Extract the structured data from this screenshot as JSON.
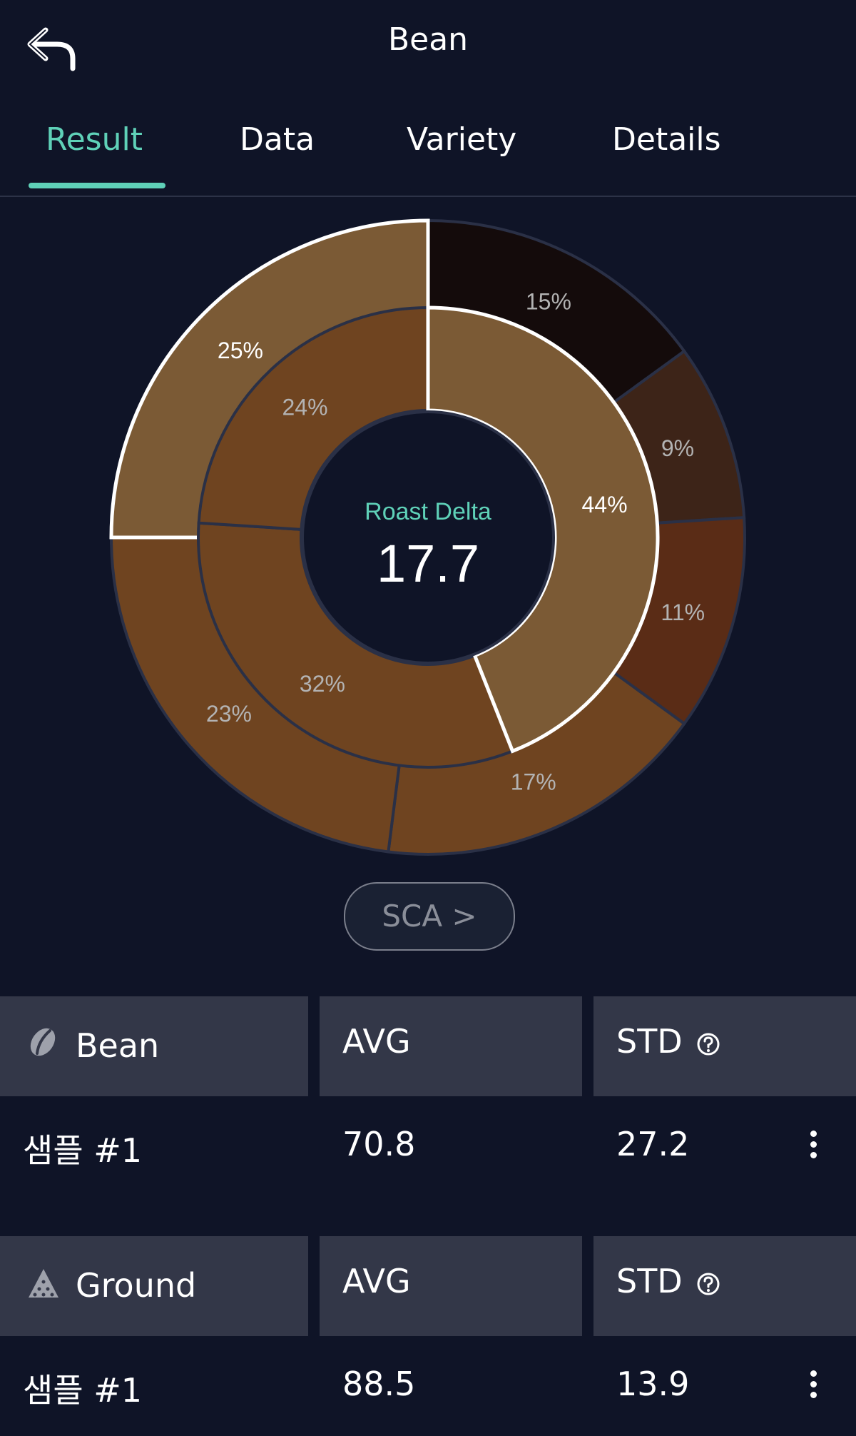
{
  "header": {
    "title": "Bean"
  },
  "tabs": [
    {
      "label": "Result",
      "active": true
    },
    {
      "label": "Data",
      "active": false
    },
    {
      "label": "Variety",
      "active": false
    },
    {
      "label": "Details",
      "active": false
    }
  ],
  "chart_data": {
    "type": "pie",
    "center_label": "Roast Delta",
    "center_value": "17.7",
    "inner_ring": [
      {
        "label": "44%",
        "value": 44,
        "color": "#7b5a35",
        "highlighted": true
      },
      {
        "label": "32%",
        "value": 32,
        "color": "#6f4420",
        "highlighted": false
      },
      {
        "label": "24%",
        "value": 24,
        "color": "#6f4420",
        "highlighted": false
      }
    ],
    "outer_ring": [
      {
        "label": "15%",
        "value": 15,
        "color": "#140b0b",
        "highlighted": false
      },
      {
        "label": "9%",
        "value": 9,
        "color": "#3d2418",
        "highlighted": false
      },
      {
        "label": "11%",
        "value": 11,
        "color": "#5a2c16",
        "highlighted": false
      },
      {
        "label": "17%",
        "value": 17,
        "color": "#6f4420",
        "highlighted": false
      },
      {
        "label": "23%",
        "value": 23,
        "color": "#6f4420",
        "highlighted": false
      },
      {
        "label": "25%",
        "value": 25,
        "color": "#7b5a35",
        "highlighted": true
      }
    ]
  },
  "sca_button": {
    "label": "SCA >"
  },
  "bean_table": {
    "category": "Bean",
    "avg_header": "AVG",
    "std_header": "STD",
    "sample_name": "샘플 #1",
    "avg_value": "70.8",
    "std_value": "27.2"
  },
  "ground_table": {
    "category": "Ground",
    "avg_header": "AVG",
    "std_header": "STD",
    "sample_name": "샘플 #1",
    "avg_value": "88.5",
    "std_value": "13.9"
  },
  "colors": {
    "accent": "#5fd1b8",
    "background": "#0f1427",
    "header_cell": "#333748"
  }
}
